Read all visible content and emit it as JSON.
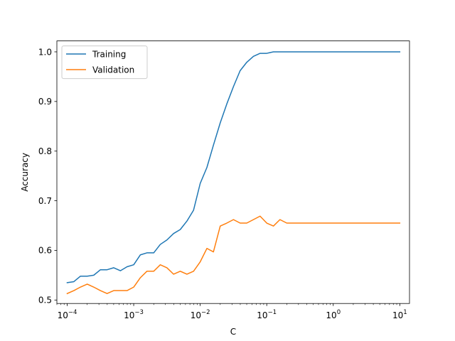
{
  "chart_data": {
    "type": "line",
    "title": "",
    "xlabel": "C",
    "ylabel": "Accuracy",
    "xscale": "log",
    "xlim": [
      7e-05,
      14
    ],
    "ylim": [
      0.493,
      1.022
    ],
    "grid": false,
    "legend_position": "top-left",
    "xticks": [
      {
        "value": 0.0001,
        "base": "10",
        "exp": "−4"
      },
      {
        "value": 0.001,
        "base": "10",
        "exp": "−3"
      },
      {
        "value": 0.01,
        "base": "10",
        "exp": "−2"
      },
      {
        "value": 0.1,
        "base": "10",
        "exp": "−1"
      },
      {
        "value": 1,
        "base": "10",
        "exp": "0"
      },
      {
        "value": 10,
        "base": "10",
        "exp": "1"
      }
    ],
    "yticks": [
      {
        "value": 0.5,
        "label": "0.5"
      },
      {
        "value": 0.6,
        "label": "0.6"
      },
      {
        "value": 0.7,
        "label": "0.7"
      },
      {
        "value": 0.8,
        "label": "0.8"
      },
      {
        "value": 0.9,
        "label": "0.9"
      },
      {
        "value": 1.0,
        "label": "1.0"
      }
    ],
    "x": [
      0.0001,
      0.000126,
      0.000158,
      0.0002,
      0.000251,
      0.000316,
      0.000398,
      0.000501,
      0.000631,
      0.000794,
      0.001,
      0.00126,
      0.00158,
      0.002,
      0.00251,
      0.00316,
      0.00398,
      0.00501,
      0.00631,
      0.00794,
      0.01,
      0.0126,
      0.0158,
      0.02,
      0.0251,
      0.0316,
      0.0398,
      0.0501,
      0.0631,
      0.0794,
      0.1,
      0.126,
      0.158,
      0.2,
      0.251,
      0.316,
      0.398,
      0.501,
      0.631,
      0.794,
      1,
      1.26,
      1.58,
      2,
      2.51,
      3.16,
      3.98,
      5.01,
      6.31,
      7.94,
      10
    ],
    "series": [
      {
        "name": "Training",
        "color": "#1f77b4",
        "values": [
          0.535,
          0.537,
          0.548,
          0.548,
          0.55,
          0.561,
          0.561,
          0.565,
          0.559,
          0.567,
          0.571,
          0.591,
          0.595,
          0.595,
          0.612,
          0.621,
          0.634,
          0.642,
          0.659,
          0.681,
          0.735,
          0.767,
          0.812,
          0.857,
          0.895,
          0.93,
          0.962,
          0.979,
          0.991,
          0.997,
          0.997,
          1.0,
          1.0,
          1.0,
          1.0,
          1.0,
          1.0,
          1.0,
          1.0,
          1.0,
          1.0,
          1.0,
          1.0,
          1.0,
          1.0,
          1.0,
          1.0,
          1.0,
          1.0,
          1.0,
          1.0
        ]
      },
      {
        "name": "Validation",
        "color": "#ff7f0e",
        "values": [
          0.513,
          0.519,
          0.526,
          0.532,
          0.526,
          0.519,
          0.513,
          0.519,
          0.519,
          0.519,
          0.526,
          0.545,
          0.558,
          0.558,
          0.571,
          0.565,
          0.552,
          0.558,
          0.552,
          0.558,
          0.577,
          0.604,
          0.597,
          0.649,
          0.655,
          0.662,
          0.655,
          0.655,
          0.662,
          0.669,
          0.655,
          0.649,
          0.662,
          0.655,
          0.655,
          0.655,
          0.655,
          0.655,
          0.655,
          0.655,
          0.655,
          0.655,
          0.655,
          0.655,
          0.655,
          0.655,
          0.655,
          0.655,
          0.655,
          0.655,
          0.655
        ]
      }
    ]
  }
}
